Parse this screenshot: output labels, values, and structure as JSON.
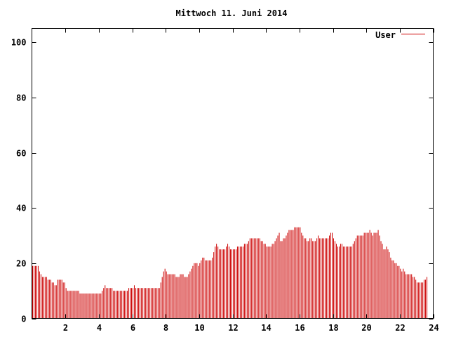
{
  "chart_data": {
    "type": "bar",
    "title": "Mittwoch 11. Juni 2014",
    "xlabel": "",
    "ylabel": "",
    "xlim": [
      0,
      24
    ],
    "ylim": [
      0,
      105
    ],
    "x_ticks": [
      2,
      4,
      6,
      8,
      10,
      12,
      14,
      16,
      18,
      20,
      22,
      24
    ],
    "y_ticks": [
      0,
      20,
      40,
      60,
      80,
      100
    ],
    "grid": false,
    "legend_position": "top-right",
    "color": "#cc0000",
    "series": [
      {
        "name": "User",
        "interval_minutes": 5,
        "values": [
          19,
          19,
          19,
          19,
          19,
          17,
          16,
          15,
          15,
          15,
          15,
          14,
          14,
          14,
          13,
          13,
          12,
          12,
          14,
          14,
          14,
          14,
          13,
          13,
          11,
          10,
          10,
          10,
          10,
          10,
          10,
          10,
          10,
          10,
          9,
          9,
          9,
          9,
          9,
          9,
          9,
          9,
          9,
          9,
          9,
          9,
          9,
          9,
          9,
          9,
          10,
          11,
          12,
          11,
          11,
          11,
          11,
          11,
          10,
          10,
          10,
          10,
          10,
          10,
          10,
          10,
          10,
          10,
          10,
          11,
          11,
          11,
          11,
          12,
          11,
          11,
          11,
          11,
          11,
          11,
          11,
          11,
          11,
          11,
          11,
          11,
          11,
          11,
          11,
          11,
          11,
          11,
          13,
          15,
          17,
          18,
          17,
          16,
          16,
          16,
          16,
          16,
          16,
          15,
          15,
          15,
          16,
          16,
          16,
          15,
          15,
          15,
          16,
          17,
          18,
          19,
          20,
          20,
          20,
          19,
          20,
          21,
          22,
          22,
          21,
          21,
          21,
          21,
          21,
          22,
          24,
          26,
          27,
          26,
          25,
          25,
          25,
          25,
          25,
          26,
          27,
          26,
          25,
          25,
          25,
          25,
          25,
          26,
          26,
          26,
          26,
          26,
          27,
          27,
          27,
          28,
          29,
          29,
          29,
          29,
          29,
          29,
          29,
          29,
          28,
          28,
          27,
          27,
          26,
          26,
          26,
          26,
          27,
          27,
          28,
          29,
          30,
          31,
          28,
          28,
          29,
          29,
          30,
          31,
          32,
          32,
          32,
          32,
          33,
          33,
          33,
          33,
          33,
          31,
          30,
          29,
          29,
          28,
          28,
          29,
          29,
          28,
          28,
          28,
          29,
          30,
          29,
          29,
          29,
          29,
          29,
          29,
          29,
          30,
          31,
          31,
          29,
          28,
          27,
          26,
          26,
          27,
          27,
          26,
          26,
          26,
          26,
          26,
          26,
          26,
          27,
          28,
          29,
          30,
          30,
          30,
          30,
          30,
          31,
          31,
          31,
          31,
          32,
          31,
          30,
          31,
          31,
          31,
          32,
          30,
          28,
          27,
          25,
          25,
          26,
          25,
          24,
          22,
          21,
          21,
          20,
          20,
          19,
          19,
          18,
          17,
          18,
          17,
          16,
          16,
          16,
          16,
          16,
          15,
          15,
          14,
          13,
          13,
          13,
          13,
          13,
          14,
          14,
          15
        ]
      }
    ]
  }
}
